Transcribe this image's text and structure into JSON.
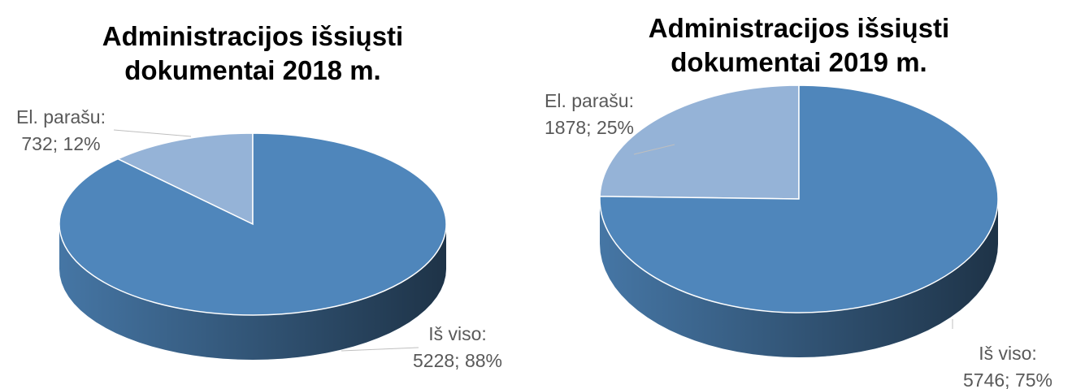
{
  "chart_data": [
    {
      "type": "pie3d",
      "title": "Administracijos išsiųsti dokumentai 2018 m.",
      "categories": [
        "El. parašu:",
        "Iš viso:"
      ],
      "values": [
        732,
        5228
      ],
      "value_labels": [
        "732; 12%",
        "5228; 88%"
      ],
      "colors": [
        "#95b3d7",
        "#4f86bb"
      ]
    },
    {
      "type": "pie3d",
      "title": "Administracijos išsiųsti dokumentai 2019 m.",
      "categories": [
        "El. parašu:",
        "Iš viso:"
      ],
      "values": [
        1878,
        5746
      ],
      "value_labels": [
        "1878; 25%",
        "5746; 75%"
      ],
      "colors": [
        "#95b3d7",
        "#4f86bb"
      ]
    }
  ]
}
